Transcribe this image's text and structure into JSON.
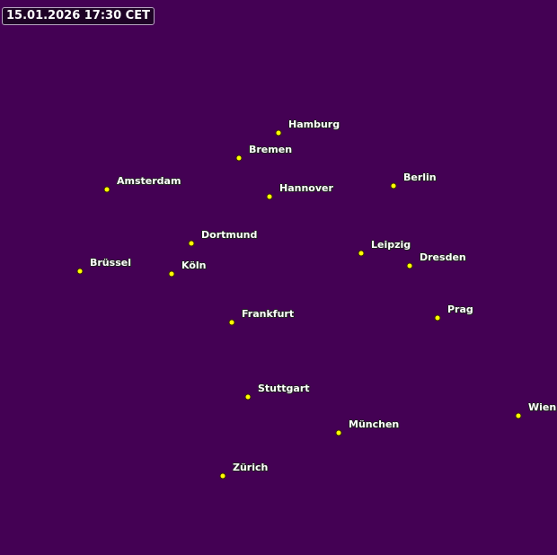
{
  "timestamp": "15.01.2026 17:30 CET",
  "background_color": "#440154",
  "marker_color": "#ffff00",
  "cities": [
    "Hamburg",
    "Bremen",
    "Amsterdam",
    "Hannover",
    "Berlin",
    "Dortmund",
    "Leipzig",
    "Dresden",
    "Brüssel",
    "Köln",
    "Frankfurt",
    "Prag",
    "Stuttgart",
    "München",
    "Wien",
    "Zürich"
  ]
}
